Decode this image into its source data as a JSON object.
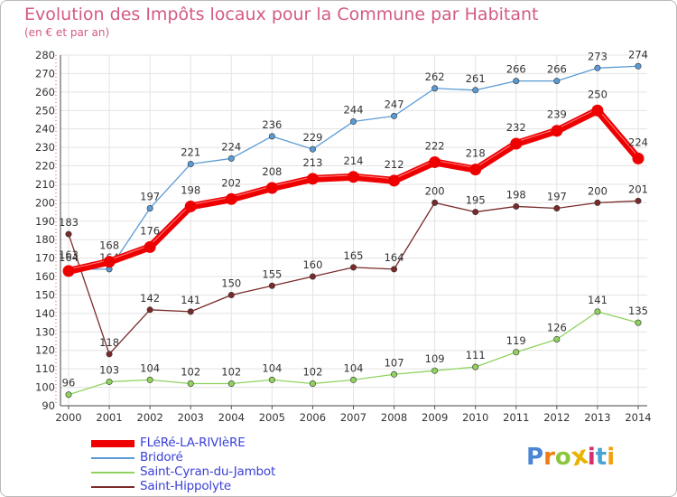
{
  "chart_data": {
    "type": "line",
    "title": "Evolution des Impôts locaux pour la Commune par Habitant",
    "subtitle": "(en € et par an)",
    "xlabel": "",
    "ylabel": "",
    "x": [
      "2000",
      "2001",
      "2002",
      "2003",
      "2004",
      "2005",
      "2006",
      "2007",
      "2008",
      "2009",
      "2010",
      "2011",
      "2012",
      "2013",
      "2014"
    ],
    "ylim": [
      90,
      280
    ],
    "yticks": [
      90,
      100,
      110,
      120,
      130,
      140,
      150,
      160,
      170,
      180,
      190,
      200,
      210,
      220,
      230,
      240,
      250,
      260,
      270,
      280
    ],
    "grid": true,
    "legend_position": "bottom-left",
    "series": [
      {
        "name": "Bridoré",
        "color": "#5b9bd5",
        "values": [
          164,
          164,
          197,
          221,
          224,
          236,
          229,
          244,
          247,
          262,
          261,
          266,
          266,
          273,
          274
        ]
      },
      {
        "name": "Saint-Cyran-du-Jambot",
        "color": "#8fd35e",
        "values": [
          96,
          103,
          104,
          102,
          102,
          104,
          102,
          104,
          107,
          109,
          111,
          119,
          126,
          141,
          135
        ]
      },
      {
        "name": "Saint-Hippolyte",
        "color": "#7a2a2a",
        "values": [
          183,
          118,
          142,
          141,
          150,
          155,
          160,
          165,
          164,
          200,
          195,
          198,
          197,
          200,
          201
        ]
      },
      {
        "name": "FLéRé-LA-RIVIèRE",
        "color": "#ee0000",
        "values": [
          163,
          168,
          176,
          198,
          202,
          208,
          213,
          214,
          212,
          222,
          218,
          232,
          239,
          250,
          224
        ]
      }
    ],
    "legend_order": [
      "FLéRé-LA-RIVIèRE",
      "Bridoré",
      "Saint-Cyran-du-Jambot",
      "Saint-Hippolyte"
    ]
  },
  "logo": {
    "letters": [
      "P",
      "r",
      "o",
      "x",
      "i",
      "t",
      "i"
    ],
    "colors": [
      "#4a86d6",
      "#f07c12",
      "#8cc63f",
      "#e8b400",
      "#d62e6e",
      "#4aa3d6",
      "#f0a212"
    ]
  }
}
